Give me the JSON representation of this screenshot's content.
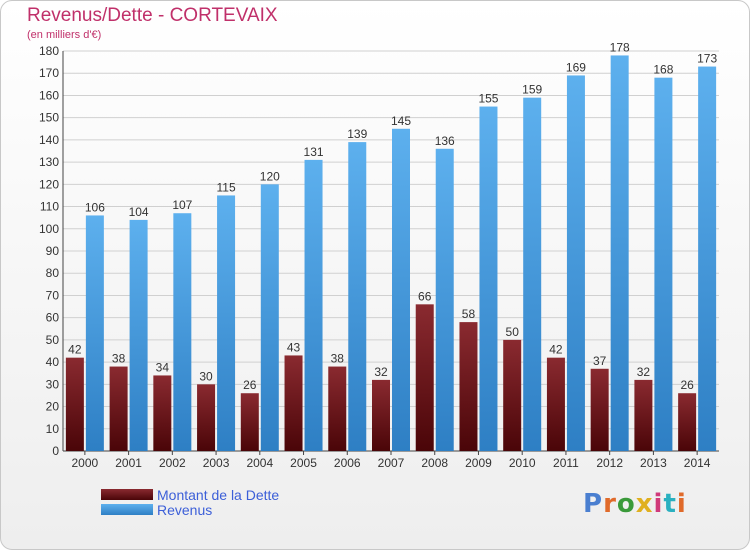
{
  "title": "Revenus/Dette - CORTEVAIX",
  "subtitle": "(en milliers d'€)",
  "logo_text": "Proxiti",
  "colors": {
    "dette": "#7a1a1f",
    "revenus": "#4ea3e6",
    "title": "#c0306a",
    "legend_text": "#3c5fd8"
  },
  "chart_data": {
    "type": "bar",
    "title": "Revenus/Dette - CORTEVAIX",
    "subtitle": "(en milliers d'€)",
    "xlabel": "",
    "ylabel": "",
    "ylim": [
      0,
      180
    ],
    "ytick_step": 10,
    "grid": true,
    "legend_position": "bottom-left",
    "categories": [
      "2000",
      "2001",
      "2002",
      "2003",
      "2004",
      "2005",
      "2006",
      "2007",
      "2008",
      "2009",
      "2010",
      "2011",
      "2012",
      "2013",
      "2014"
    ],
    "series": [
      {
        "name": "Montant de la Dette",
        "color": "#7a1a1f",
        "values": [
          42,
          38,
          34,
          30,
          26,
          43,
          38,
          32,
          66,
          58,
          50,
          42,
          37,
          32,
          26
        ]
      },
      {
        "name": "Revenus",
        "color": "#4ea3e6",
        "values": [
          106,
          104,
          107,
          115,
          120,
          131,
          139,
          145,
          136,
          155,
          159,
          169,
          178,
          168,
          173
        ]
      }
    ]
  }
}
